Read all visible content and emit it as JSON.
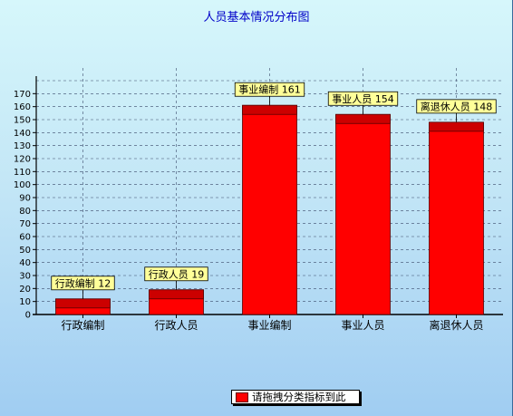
{
  "chart_data": {
    "type": "bar",
    "title": "人员基本情况分布图",
    "categories": [
      "行政编制",
      "行政人员",
      "事业编制",
      "事业人员",
      "离退休人员"
    ],
    "series": [
      {
        "name": "请拖拽分类指标到此",
        "values": [
          12,
          19,
          161,
          154,
          148
        ]
      }
    ],
    "data_labels": [
      "行政编制 12",
      "行政人员 19",
      "事业编制 161",
      "事业人员 154",
      "离退休人员 148"
    ],
    "yticks": [
      0,
      10,
      20,
      30,
      40,
      50,
      60,
      70,
      80,
      90,
      100,
      110,
      120,
      130,
      140,
      150,
      160,
      170
    ],
    "ylim": [
      0,
      180
    ],
    "grid": true,
    "legend_position": "bottom",
    "colors": {
      "bar": "#ff0000",
      "bar_top": "#cc0000",
      "bar_edge": "#5a0000",
      "label_bg": "#ffff99",
      "title": "#0000c8"
    }
  }
}
